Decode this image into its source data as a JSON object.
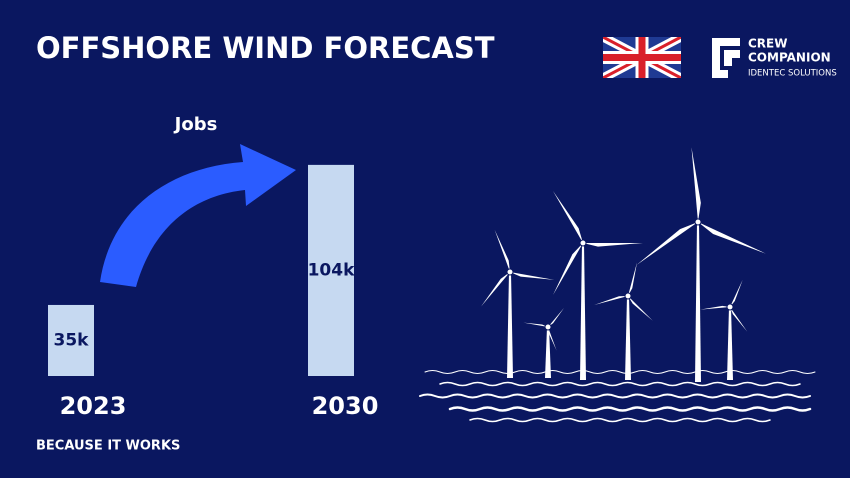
{
  "chart_data": {
    "type": "bar",
    "title": "OFFSHORE WIND FORECAST",
    "subtitle": "Jobs",
    "categories": [
      "2023",
      "2030"
    ],
    "values": [
      35000,
      104000
    ],
    "value_labels": [
      "35k",
      "104k"
    ],
    "color": "#c6d9f1",
    "arrow_color": "#2b5cff"
  },
  "brand": {
    "name_line1": "CREW",
    "name_line2": "COMPANION",
    "tagline": "IDENTEC SOLUTIONS"
  },
  "footer": "BECAUSE IT WORKS"
}
